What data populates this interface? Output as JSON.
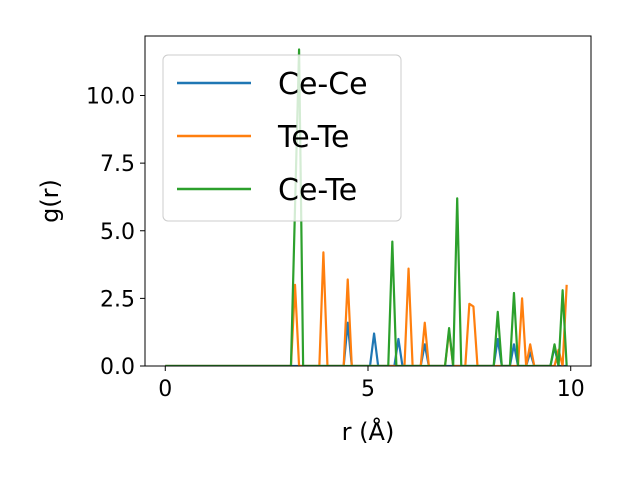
{
  "chart_data": {
    "type": "line",
    "xlabel": "r (Å)",
    "ylabel": "g(r)",
    "xlim": [
      -0.5,
      10.5
    ],
    "ylim": [
      0,
      12.2
    ],
    "xticks": [
      0,
      5,
      10
    ],
    "yticks": [
      0.0,
      2.5,
      5.0,
      7.5,
      10.0
    ],
    "xtick_labels": [
      "0",
      "5",
      "10"
    ],
    "ytick_labels": [
      "0.0",
      "2.5",
      "5.0",
      "7.5",
      "10.0"
    ],
    "grid": false,
    "legend_position": "upper-left",
    "series": [
      {
        "name": "Ce-Ce",
        "color": "#1f77b4",
        "x": [
          0,
          3.0,
          4.4,
          4.5,
          4.6,
          5.05,
          5.15,
          5.25,
          5.65,
          5.75,
          5.85,
          6.3,
          6.4,
          6.5,
          8.1,
          8.2,
          8.3,
          8.5,
          8.6,
          8.7,
          8.9,
          9.0,
          9.1,
          9.5,
          9.6,
          9.7,
          9.9
        ],
        "y": [
          0,
          0,
          0,
          1.6,
          0,
          0,
          1.2,
          0,
          0,
          1.0,
          0,
          0,
          0.8,
          0,
          0,
          1.0,
          0,
          0,
          0.8,
          0,
          0,
          0.5,
          0,
          0,
          0.7,
          0,
          0
        ]
      },
      {
        "name": "Te-Te",
        "color": "#ff7f0e",
        "x": [
          0,
          3.1,
          3.2,
          3.3,
          3.8,
          3.9,
          4.0,
          4.4,
          4.5,
          4.6,
          5.9,
          6.0,
          6.1,
          6.3,
          6.4,
          6.5,
          6.9,
          7.0,
          7.1,
          7.4,
          7.5,
          7.6,
          7.7,
          8.7,
          8.8,
          8.9,
          9.0,
          9.1,
          9.6,
          9.7,
          9.8,
          9.9
        ],
        "y": [
          0,
          0,
          3.0,
          0,
          0,
          4.2,
          0,
          0,
          3.2,
          0,
          0,
          3.6,
          0,
          0,
          1.6,
          0,
          0,
          1.3,
          0,
          0,
          2.3,
          2.2,
          0,
          0,
          2.5,
          0,
          0.8,
          0,
          0,
          0.6,
          0,
          3.0
        ]
      },
      {
        "name": "Ce-Te",
        "color": "#2ca02c",
        "x": [
          0,
          3.1,
          3.3,
          3.4,
          5.5,
          5.6,
          5.7,
          6.9,
          7.0,
          7.1,
          7.2,
          7.3,
          8.1,
          8.2,
          8.3,
          8.5,
          8.6,
          8.7,
          9.5,
          9.6,
          9.7,
          9.8,
          9.9
        ],
        "y": [
          0,
          0,
          11.7,
          0,
          0,
          4.6,
          0,
          0,
          1.4,
          0,
          6.2,
          0,
          0,
          2.0,
          0,
          0,
          2.7,
          0,
          0,
          0.8,
          0,
          2.8,
          0
        ]
      }
    ]
  }
}
